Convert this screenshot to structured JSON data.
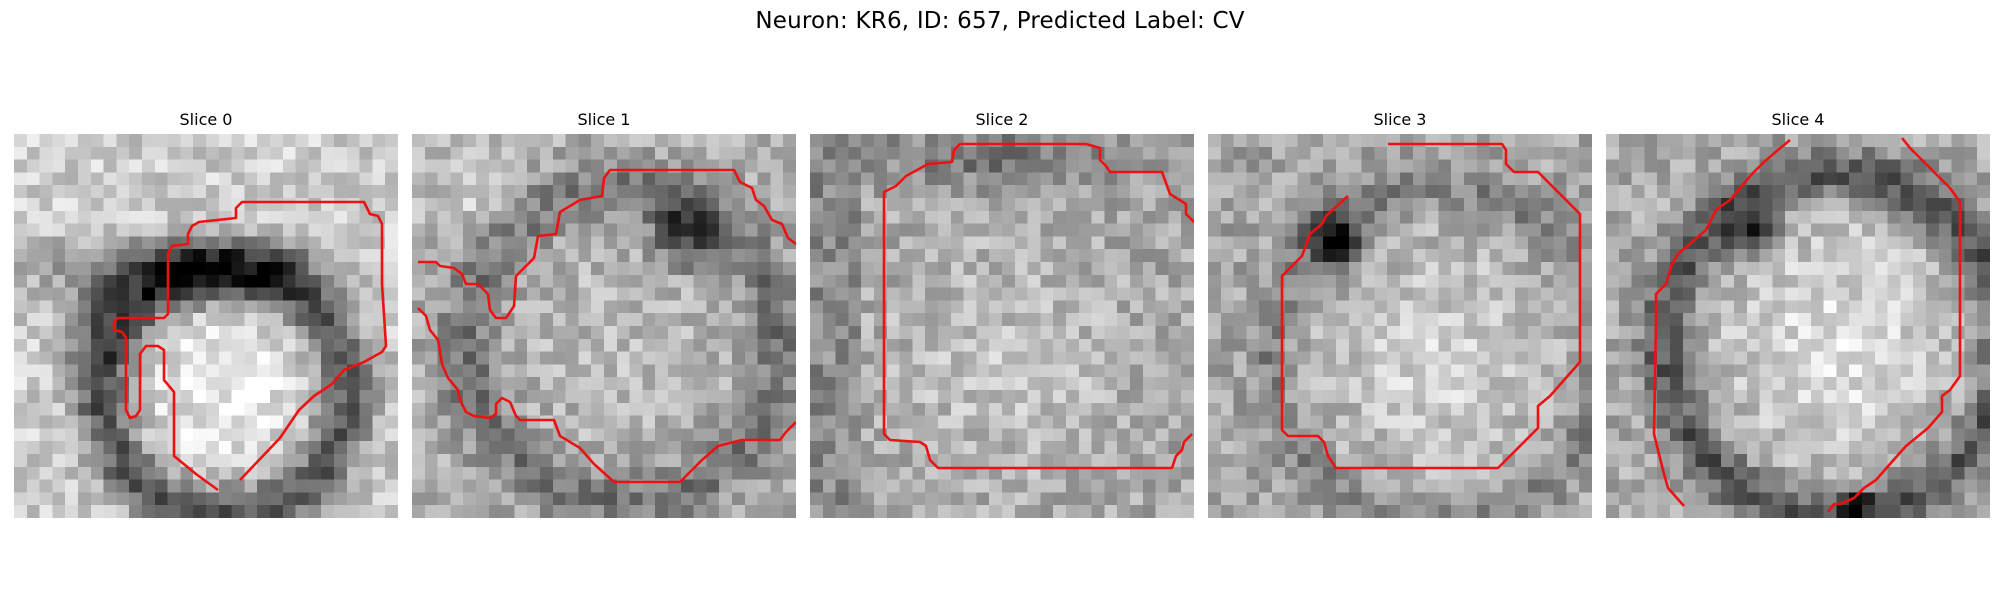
{
  "figure": {
    "title": "Neuron: KR6, ID: 657, Predicted Label: CV",
    "contour_color": "#ee1111",
    "colormap": "grayscale"
  },
  "panels": [
    {
      "title": "Slice 0"
    },
    {
      "title": "Slice 1"
    },
    {
      "title": "Slice 2"
    },
    {
      "title": "Slice 3"
    },
    {
      "title": "Slice 4"
    }
  ]
}
